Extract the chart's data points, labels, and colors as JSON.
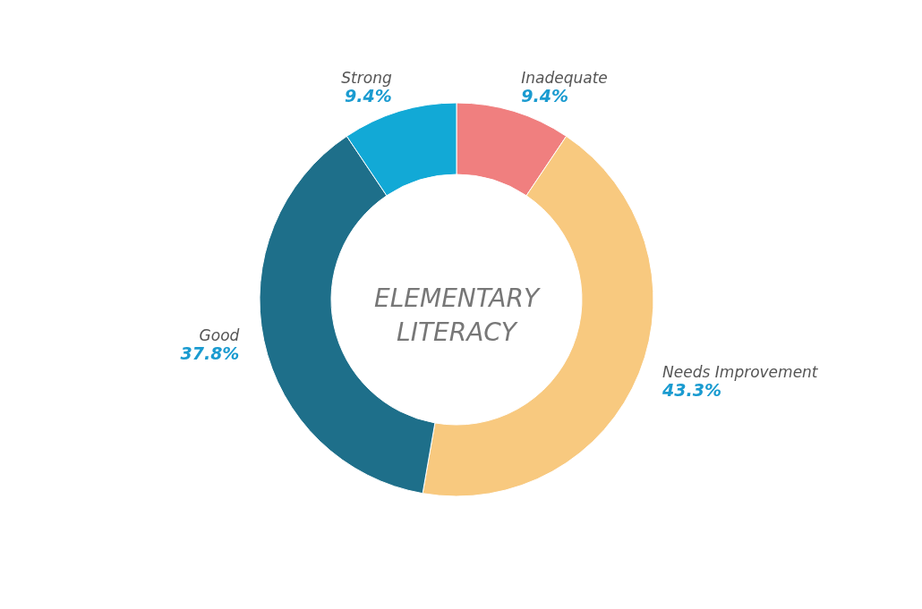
{
  "chart_data": {
    "type": "donut",
    "title": "ELEMENTARY LITERACY",
    "categories": [
      "Inadequate",
      "Needs Improvement",
      "Good",
      "Strong"
    ],
    "values": [
      9.4,
      43.3,
      37.8,
      9.4
    ],
    "value_labels": [
      "9.4%",
      "43.3%",
      "37.8%",
      "9.4%"
    ],
    "colors": [
      "#f07f7f",
      "#f8c97f",
      "#1e6f8a",
      "#12a9d6"
    ]
  }
}
